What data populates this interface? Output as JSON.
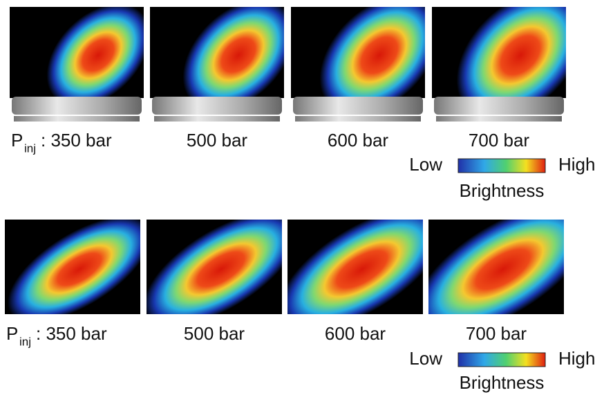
{
  "rows": [
    {
      "prefix": "P",
      "prefix_sub": "inj",
      "labels": [
        ": 350 bar",
        "500 bar",
        "600 bar",
        "700 bar"
      ],
      "colorbar": {
        "low": "Low",
        "high": "High",
        "title": "Brightness"
      }
    },
    {
      "prefix": "P",
      "prefix_sub": "inj",
      "labels": [
        ": 350 bar",
        "500 bar",
        "600 bar",
        "700 bar"
      ],
      "colorbar": {
        "low": "Low",
        "high": "High",
        "title": "Brightness"
      }
    }
  ]
}
